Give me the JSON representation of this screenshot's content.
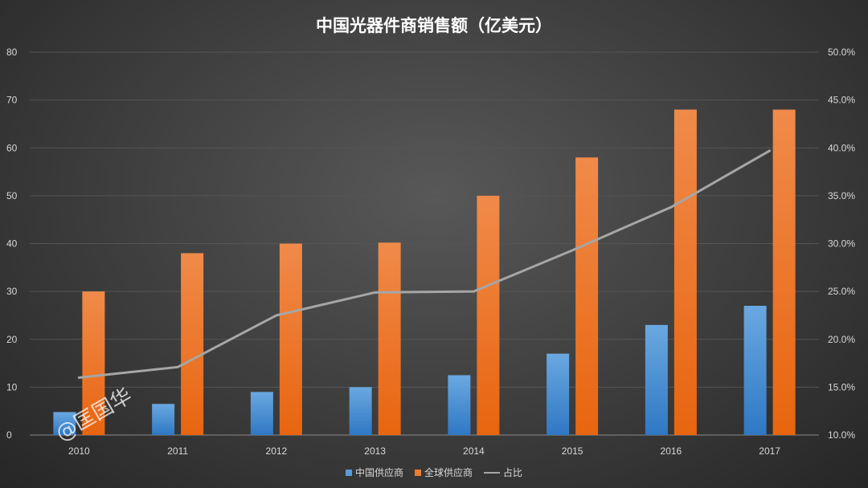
{
  "chart_data": {
    "type": "bar",
    "title": "中国光器件商销售额（亿美元）",
    "categories": [
      "2010",
      "2011",
      "2012",
      "2013",
      "2014",
      "2015",
      "2016",
      "2017"
    ],
    "series": [
      {
        "name": "中国供应商",
        "type": "bar",
        "axis": "left",
        "color": "#5b9bd5",
        "values": [
          4.8,
          6.5,
          9,
          10,
          12.5,
          17,
          23,
          27
        ]
      },
      {
        "name": "全球供应商",
        "type": "bar",
        "axis": "left",
        "color": "#ed7d31",
        "values": [
          30,
          38,
          40,
          40.2,
          50,
          58,
          68,
          68
        ]
      },
      {
        "name": "占比",
        "type": "line",
        "axis": "right",
        "color": "#a6a6a6",
        "values": [
          16.0,
          17.1,
          22.5,
          24.9,
          25.0,
          29.3,
          33.8,
          39.7
        ]
      }
    ],
    "ylim": [
      0,
      80
    ],
    "yticks": [
      "0",
      "10",
      "20",
      "30",
      "40",
      "50",
      "60",
      "70",
      "80"
    ],
    "y2lim": [
      10,
      50
    ],
    "y2ticks": [
      "10.0%",
      "15.0%",
      "20.0%",
      "25.0%",
      "30.0%",
      "35.0%",
      "40.0%",
      "45.0%",
      "50.0%"
    ],
    "grid": true,
    "legend": "bottom"
  },
  "watermark": "@匡国华"
}
